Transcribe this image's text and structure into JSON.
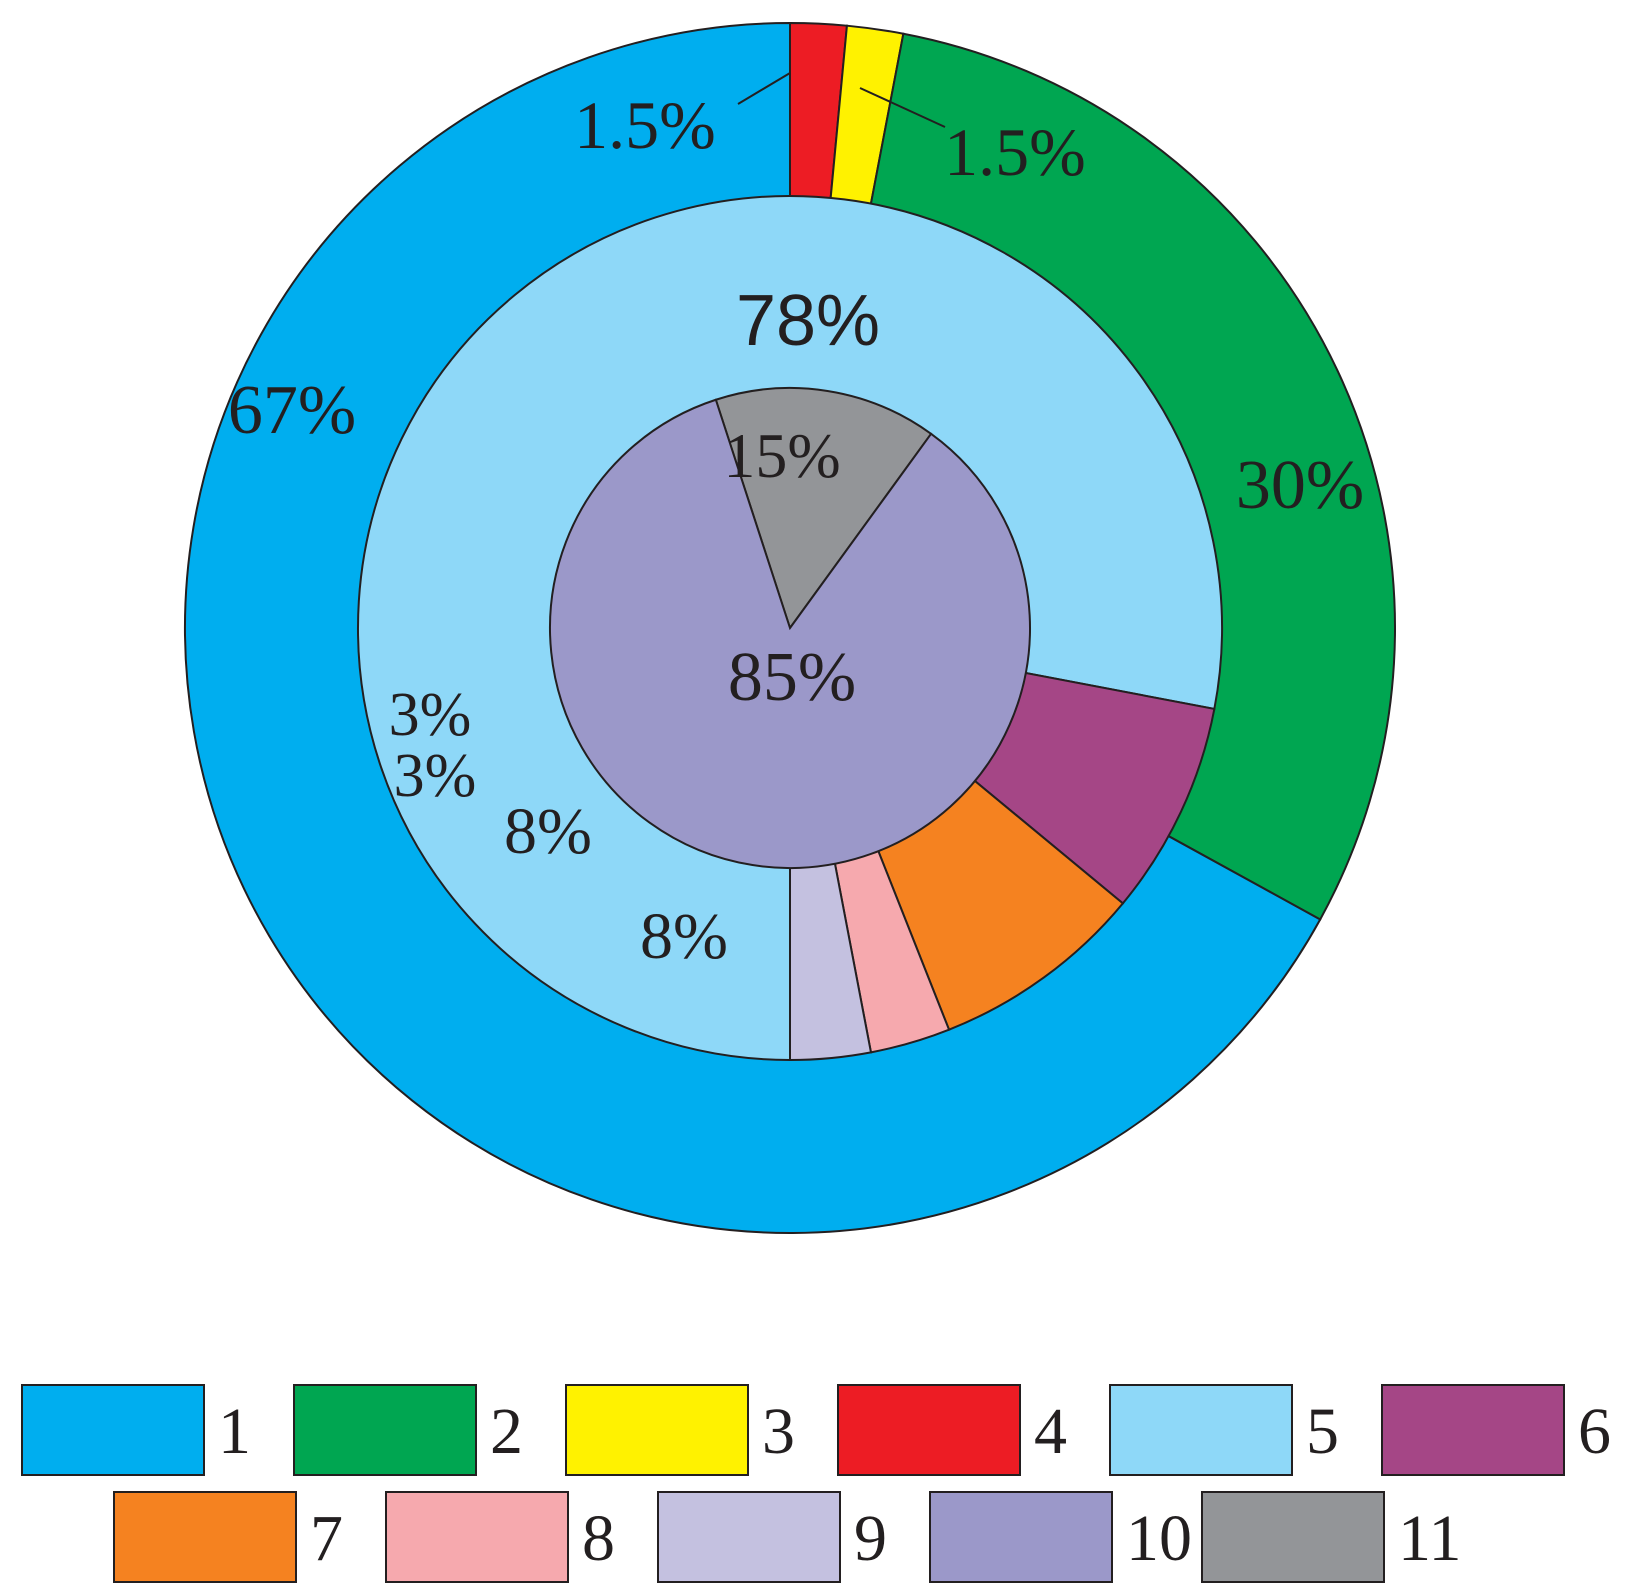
{
  "chart_data": {
    "type": "pie",
    "title": "",
    "rings": [
      {
        "ring": "outer",
        "slices": [
          {
            "legend_key": "4",
            "value": 1.5,
            "label": "1.5%",
            "color": "#ed1c24"
          },
          {
            "legend_key": "3",
            "value": 1.5,
            "label": "1.5%",
            "color": "#fff200"
          },
          {
            "legend_key": "2",
            "value": 30,
            "label": "30%",
            "color": "#00a651"
          },
          {
            "legend_key": "1",
            "value": 67,
            "label": "67%",
            "color": "#00aeef"
          }
        ]
      },
      {
        "ring": "middle",
        "slices": [
          {
            "legend_key": "5",
            "value": 78,
            "label": "78%",
            "color": "#8ed8f8"
          },
          {
            "legend_key": "6",
            "value": 8,
            "label": "8%",
            "color": "#a54686"
          },
          {
            "legend_key": "7",
            "value": 8,
            "label": "8%",
            "color": "#f58220"
          },
          {
            "legend_key": "8",
            "value": 3,
            "label": "3%",
            "color": "#f6a9ae"
          },
          {
            "legend_key": "9",
            "value": 3,
            "label": "3%",
            "color": "#c4c1e0"
          }
        ]
      },
      {
        "ring": "inner",
        "slices": [
          {
            "legend_key": "11",
            "value": 15,
            "label": "15%",
            "color": "#939598"
          },
          {
            "legend_key": "10",
            "value": 85,
            "label": "85%",
            "color": "#9b98c9"
          }
        ]
      }
    ],
    "legend": {
      "placement": "bottom",
      "entries": [
        {
          "label": "1",
          "color": "#00aeef"
        },
        {
          "label": "2",
          "color": "#00a651"
        },
        {
          "label": "3",
          "color": "#fff200"
        },
        {
          "label": "4",
          "color": "#ed1c24"
        },
        {
          "label": "5",
          "color": "#8ed8f8"
        },
        {
          "label": "6",
          "color": "#a54686"
        },
        {
          "label": "7",
          "color": "#f58220"
        },
        {
          "label": "8",
          "color": "#f6a9ae"
        },
        {
          "label": "9",
          "color": "#c4c1e0"
        },
        {
          "label": "10",
          "color": "#9b98c9"
        },
        {
          "label": "11",
          "color": "#939598"
        }
      ]
    }
  }
}
